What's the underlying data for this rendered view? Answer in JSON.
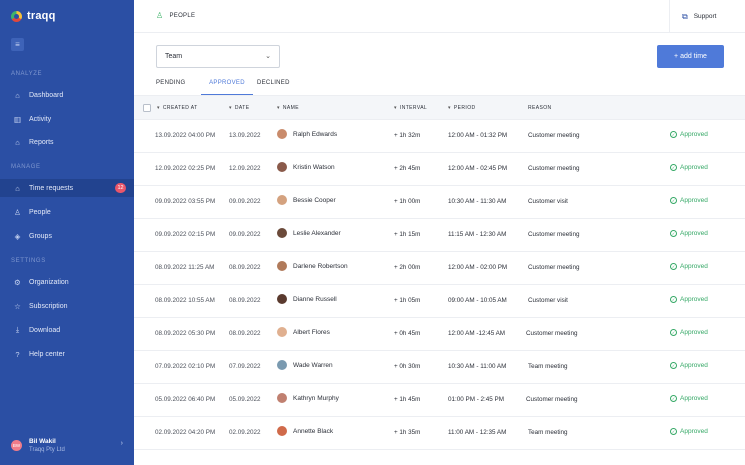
{
  "app": {
    "name": "traqq"
  },
  "sidebar": {
    "sections": {
      "analyze": "ANALYZE",
      "manage": "MANAGE",
      "settings": "SETTINGS"
    },
    "items": [
      {
        "label": "Dashboard",
        "icon": "home-icon"
      },
      {
        "label": "Activity",
        "icon": "bar-chart-icon"
      },
      {
        "label": "Reports",
        "icon": "reports-icon"
      },
      {
        "label": "Time requests",
        "icon": "home-icon",
        "badge": "12",
        "active": true
      },
      {
        "label": "People",
        "icon": "people-icon"
      },
      {
        "label": "Groups",
        "icon": "groups-icon"
      },
      {
        "label": "Organization",
        "icon": "gear-icon"
      },
      {
        "label": "Subscription",
        "icon": "star-icon"
      },
      {
        "label": "Download",
        "icon": "download-icon"
      },
      {
        "label": "Help center",
        "icon": "help-icon"
      }
    ],
    "user": {
      "initials": "BW",
      "name": "Bil Wakil",
      "org": "Traqq Pty Ltd"
    }
  },
  "topbar": {
    "breadcrumb": "PEOPLE",
    "support": "Support"
  },
  "controls": {
    "team_select": "Team",
    "add_button": "+ add time"
  },
  "tabs": [
    "PENDING",
    "APPROVED",
    "DECLINED"
  ],
  "table": {
    "headers": {
      "created_at": "CREATED AT",
      "date": "DATE",
      "name": "NAME",
      "interval": "INTERVAL",
      "period": "PERIOD",
      "reason": "REASON"
    },
    "rows": [
      {
        "created_at": "13.09.2022 04:00 PM",
        "date": "13.09.2022",
        "name": "Ralph Edwards",
        "interval": "+ 1h 32m",
        "period": "12:00 AM - 01:32 PM",
        "reason": "Customer meeting",
        "status": "Approved"
      },
      {
        "created_at": "12.09.2022 02:25 PM",
        "date": "12.09.2022",
        "name": "Kristin Watson",
        "interval": "+ 2h 45m",
        "period": "12:00 AM - 02:45 PM",
        "reason": "Customer meeting",
        "status": "Approved"
      },
      {
        "created_at": "09.09.2022 03:55 PM",
        "date": "09.09.2022",
        "name": "Bessie Cooper",
        "interval": "+ 1h 00m",
        "period": "10:30 AM - 11:30 AM",
        "reason": "Customer visit",
        "status": "Approved"
      },
      {
        "created_at": "09.09.2022 02:15 PM",
        "date": "09.09.2022",
        "name": "Leslie Alexander",
        "interval": "+ 1h 15m",
        "period": "11:15 AM - 12:30 AM",
        "reason": "Customer meeting",
        "status": "Approved"
      },
      {
        "created_at": "08.09.2022 11:25 AM",
        "date": "08.09.2022",
        "name": "Darlene Robertson",
        "interval": "+ 2h 00m",
        "period": "12:00 AM - 02:00 PM",
        "reason": "Customer meeting",
        "status": "Approved"
      },
      {
        "created_at": "08.09.2022 10:55 AM",
        "date": "08.09.2022",
        "name": "Dianne Russell",
        "interval": "+ 1h 05m",
        "period": "09:00 AM - 10:05 AM",
        "reason": "Customer visit",
        "status": "Approved"
      },
      {
        "created_at": "08.09.2022 05:30 PM",
        "date": "08.09.2022",
        "name": "Albert Flores",
        "interval": "+ 0h 45m",
        "period": "12:00 AM -12:45 AM",
        "reason": "Customer meeting",
        "status": "Approved"
      },
      {
        "created_at": "07.09.2022 02:10 PM",
        "date": "07.09.2022",
        "name": "Wade Warren",
        "interval": "+ 0h 30m",
        "period": "10:30 AM - 11:00 AM",
        "reason": "Team meeting",
        "status": "Approved"
      },
      {
        "created_at": "05.09.2022 06:40 PM",
        "date": "05.09.2022",
        "name": "Kathryn Murphy",
        "interval": "+ 1h 45m",
        "period": "01:00 PM - 2:45 PM",
        "reason": "Customer meeting",
        "status": "Approved"
      },
      {
        "created_at": "02.09.2022 04:20 PM",
        "date": "02.09.2022",
        "name": "Annette Black",
        "interval": "+ 1h 35m",
        "period": "11:00 AM - 12:35 AM",
        "reason": "Team meeting",
        "status": "Approved"
      }
    ]
  },
  "colors": {
    "sidebar_bg": "#2b4fa4",
    "accent": "#4f7ad9",
    "approved": "#35a866",
    "badge": "#e9566a"
  }
}
